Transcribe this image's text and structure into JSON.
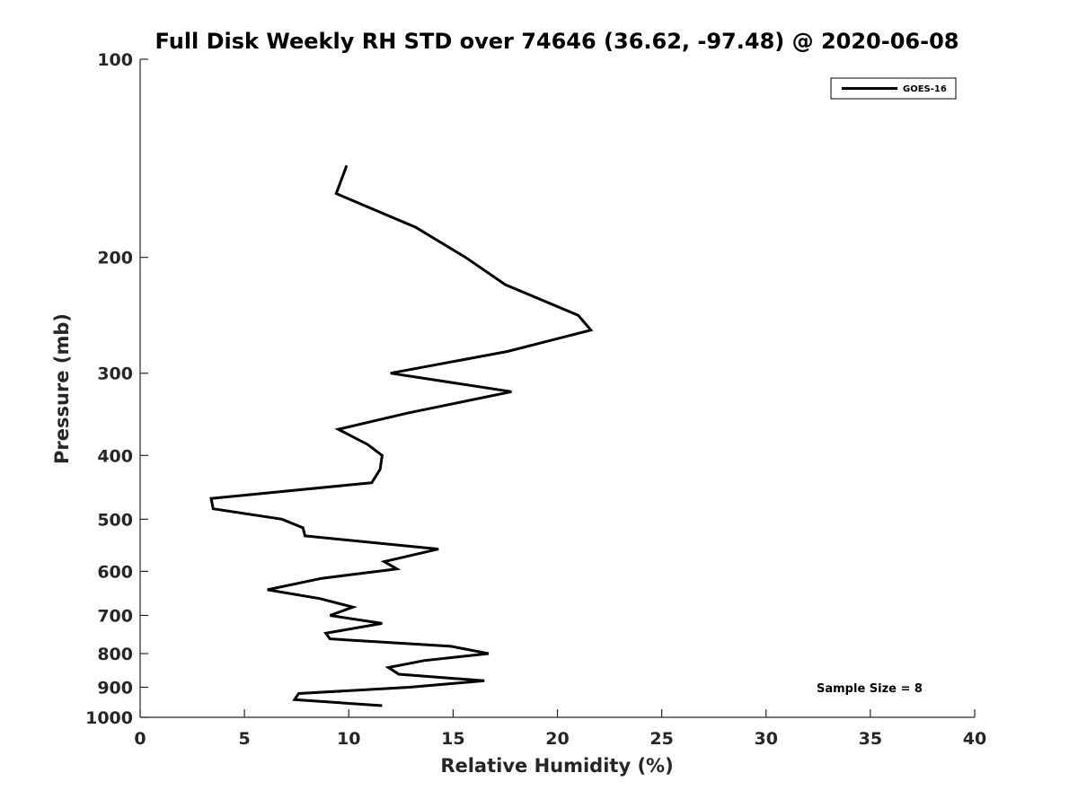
{
  "chart_data": {
    "type": "line",
    "title": "Full Disk Weekly RH STD over 74646 (36.62, -97.48) @ 2020-06-08",
    "xlabel": "Relative Humidity (%)",
    "ylabel": "Pressure (mb)",
    "xlim": [
      0,
      40
    ],
    "ylim": [
      100,
      1000
    ],
    "yscale": "log",
    "xticks": [
      0,
      5,
      10,
      15,
      20,
      25,
      30,
      35,
      40
    ],
    "yticks": [
      100,
      200,
      300,
      400,
      500,
      600,
      700,
      800,
      900,
      1000
    ],
    "legend_position": "top-right",
    "annotation": "Sample Size = 8",
    "series": [
      {
        "name": "GOES-16",
        "color": "#000000",
        "x": [
          9.9,
          9.4,
          13.2,
          15.6,
          17.5,
          21.0,
          21.6,
          17.6,
          12.0,
          17.8,
          12.8,
          9.5,
          10.9,
          11.6,
          11.5,
          11.1,
          3.4,
          3.5,
          6.8,
          7.8,
          7.9,
          14.3,
          11.7,
          12.3,
          8.7,
          6.1,
          8.6,
          10.2,
          9.1,
          11.6,
          8.9,
          9.1,
          14.9,
          16.7,
          13.6,
          11.9,
          12.4,
          16.5,
          12.9,
          7.6,
          7.4,
          11.6
        ],
        "y": [
          145,
          160,
          180,
          200,
          220,
          245,
          258,
          278,
          300,
          320,
          345,
          365,
          385,
          400,
          420,
          440,
          465,
          482,
          500,
          515,
          530,
          555,
          580,
          595,
          615,
          640,
          660,
          680,
          700,
          720,
          745,
          760,
          780,
          800,
          820,
          840,
          860,
          880,
          900,
          920,
          940,
          960
        ]
      }
    ]
  }
}
